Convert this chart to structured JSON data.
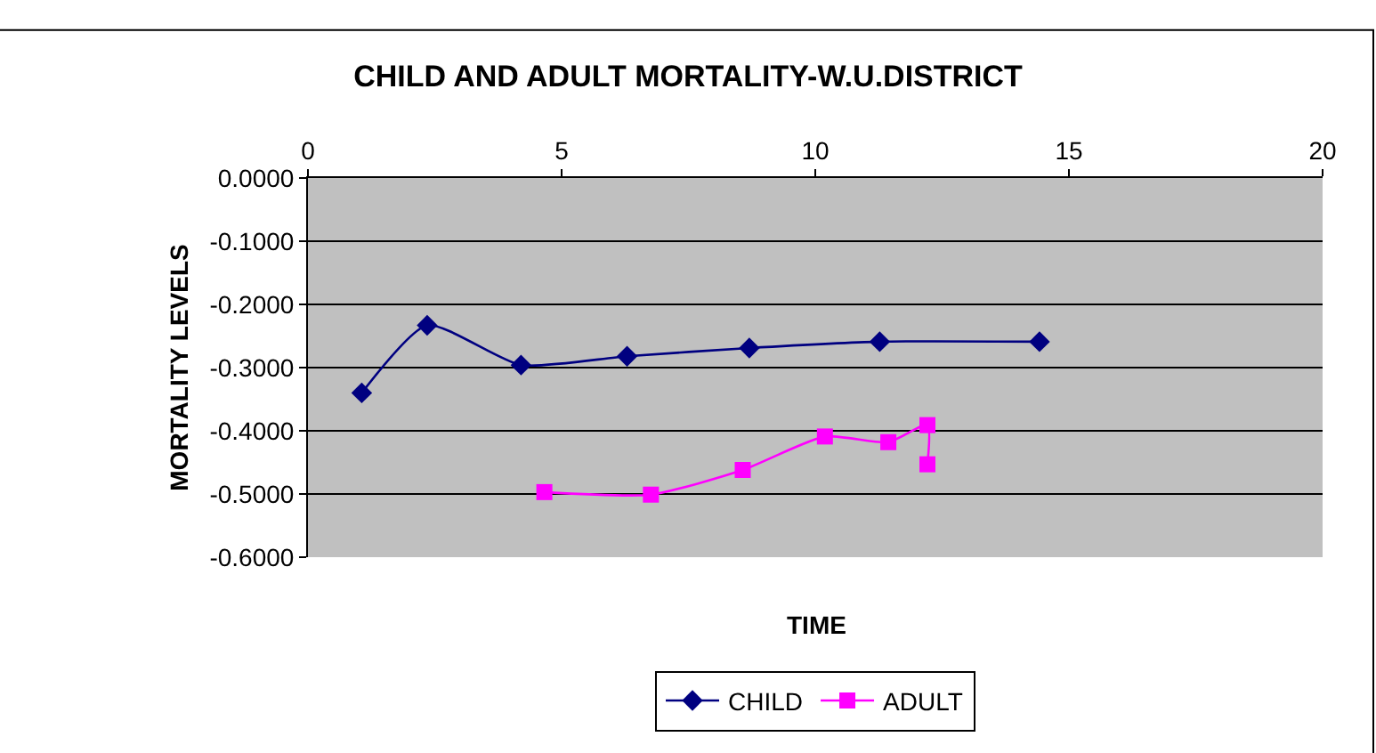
{
  "chart_data": {
    "type": "line",
    "title": "CHILD AND ADULT MORTALITY-W.U.DISTRICT",
    "xlabel": "TIME",
    "ylabel": "MORTALITY LEVELS",
    "series": [
      {
        "name": "CHILD",
        "color": "#000080",
        "marker": "diamond",
        "x": [
          1.06,
          2.35,
          4.2,
          6.29,
          8.7,
          11.27,
          14.42
        ],
        "values": [
          -0.34,
          -0.233,
          -0.296,
          -0.282,
          -0.269,
          -0.259,
          -0.259
        ]
      },
      {
        "name": "ADULT",
        "color": "#ff00ff",
        "marker": "square",
        "x": [
          4.66,
          6.76,
          8.57,
          10.19,
          11.44,
          12.21,
          12.21
        ],
        "values": [
          -0.497,
          -0.501,
          -0.462,
          -0.409,
          -0.418,
          -0.391,
          -0.453
        ]
      }
    ],
    "xlim": [
      0,
      20
    ],
    "xticks": [
      0,
      5,
      10,
      15,
      20
    ],
    "ylim": [
      -0.6,
      0
    ],
    "yticks": [
      {
        "value": 0,
        "label": "0.0000"
      },
      {
        "value": -0.1,
        "label": "-0.1000"
      },
      {
        "value": -0.2,
        "label": "-0.2000"
      },
      {
        "value": -0.3,
        "label": "-0.3000"
      },
      {
        "value": -0.4,
        "label": "-0.4000"
      },
      {
        "value": -0.5,
        "label": "-0.5000"
      },
      {
        "value": -0.6,
        "label": "-0.6000"
      }
    ],
    "grid": "y",
    "legend": "bottom"
  }
}
